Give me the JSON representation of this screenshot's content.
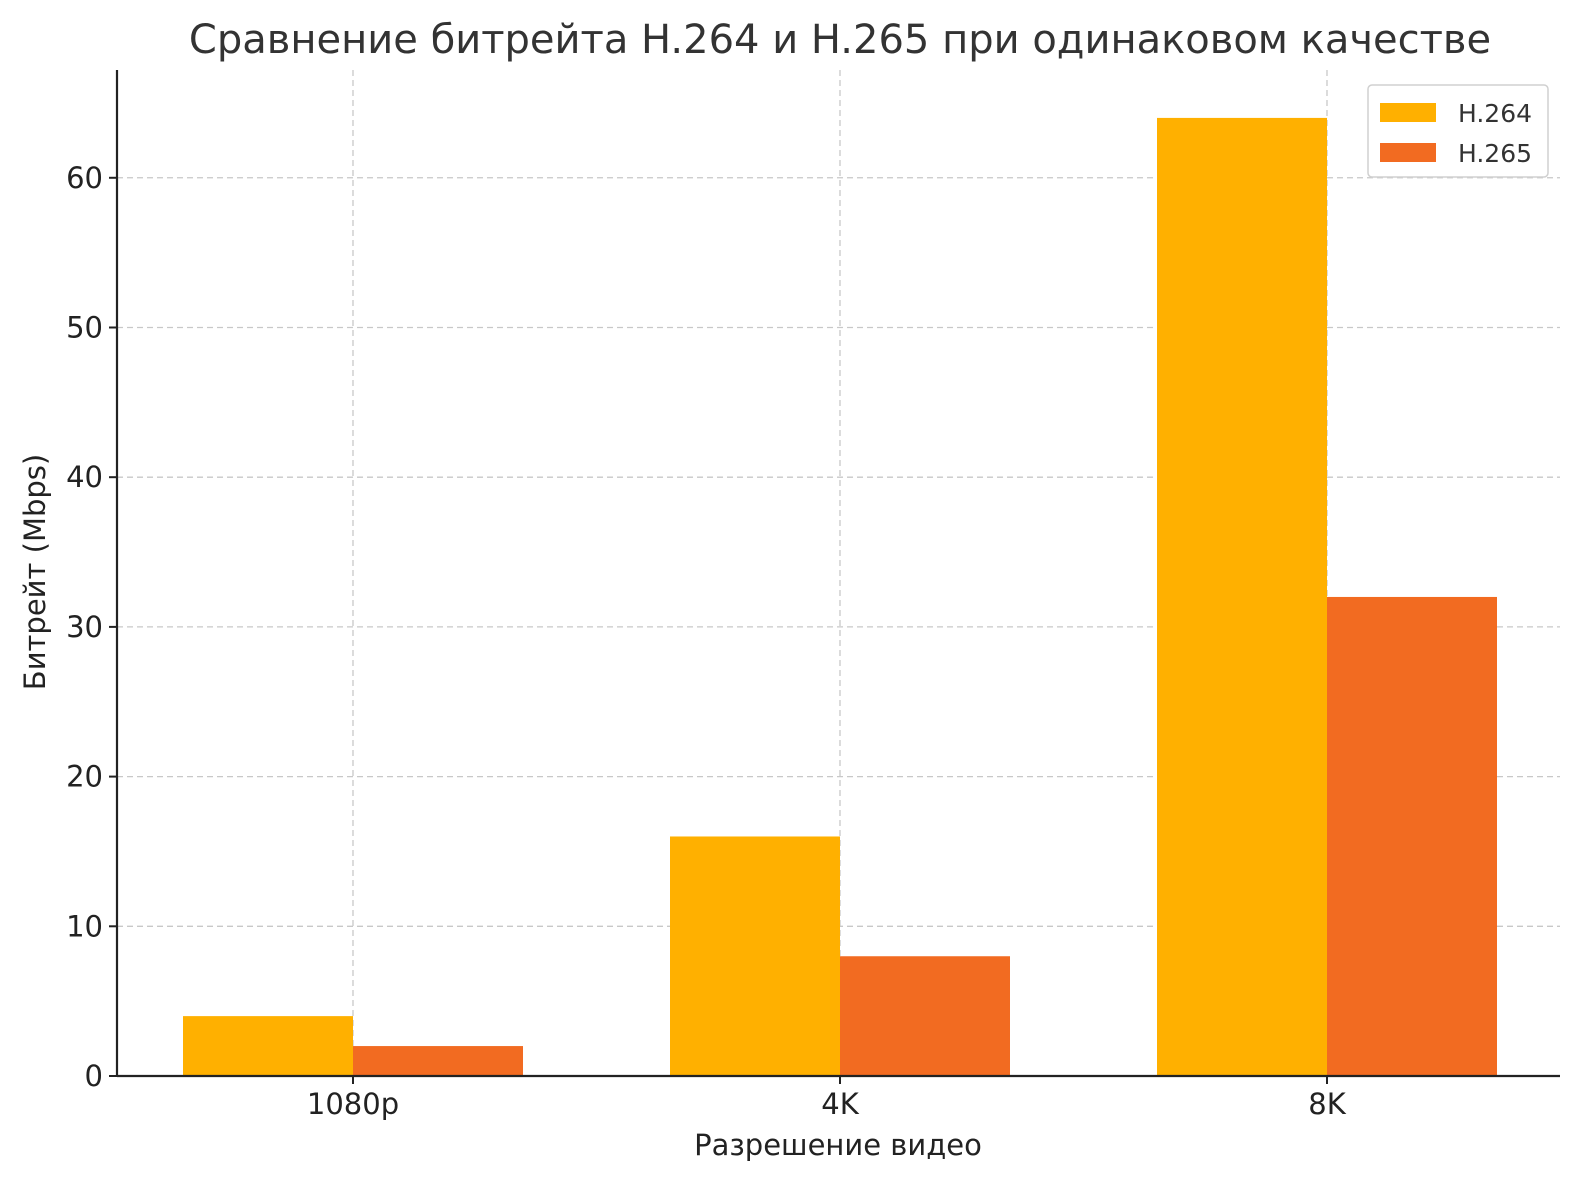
{
  "chart_data": {
    "type": "bar",
    "title": "Сравнение битрейта H.264 и H.265 при одинаковом качестве",
    "xlabel": "Разрешение видео",
    "ylabel": "Битрейт (Mbps)",
    "categories": [
      "1080p",
      "4K",
      "8K"
    ],
    "series": [
      {
        "name": "H.264",
        "values": [
          4,
          16,
          64
        ],
        "color": "#FFB000"
      },
      {
        "name": "H.265",
        "values": [
          2,
          8,
          32
        ],
        "color": "#F26B21"
      }
    ],
    "ylim": [
      0,
      67.2
    ],
    "yticks": [
      0,
      10,
      20,
      30,
      40,
      50,
      60
    ],
    "grid": true,
    "legend_position": "top-right"
  }
}
